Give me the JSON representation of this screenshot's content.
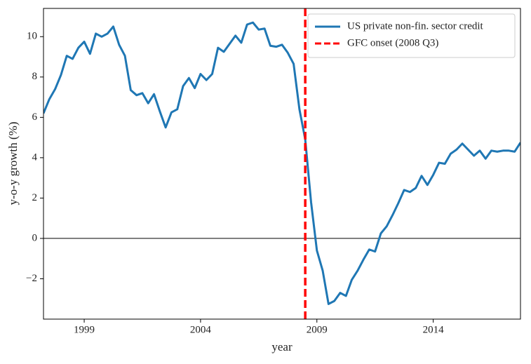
{
  "chart_data": {
    "type": "line",
    "xlabel": "year",
    "ylabel": "y-o-y growth (%)",
    "x": [
      1997.25,
      1997.5,
      1997.75,
      1998,
      1998.25,
      1998.5,
      1998.75,
      1999,
      1999.25,
      1999.5,
      1999.75,
      2000,
      2000.25,
      2000.5,
      2000.75,
      2001,
      2001.25,
      2001.5,
      2001.75,
      2002,
      2002.25,
      2002.5,
      2002.75,
      2003,
      2003.25,
      2003.5,
      2003.75,
      2004,
      2004.25,
      2004.5,
      2004.75,
      2005,
      2005.25,
      2005.5,
      2005.75,
      2006,
      2006.25,
      2006.5,
      2006.75,
      2007,
      2007.25,
      2007.5,
      2007.75,
      2008,
      2008.25,
      2008.5,
      2008.75,
      2009,
      2009.25,
      2009.5,
      2009.75,
      2010,
      2010.25,
      2010.5,
      2010.75,
      2011,
      2011.25,
      2011.5,
      2011.75,
      2012,
      2012.25,
      2012.5,
      2012.75,
      2013,
      2013.25,
      2013.5,
      2013.75,
      2014,
      2014.25,
      2014.5,
      2014.75,
      2015,
      2015.25,
      2015.5,
      2015.75,
      2016,
      2016.25,
      2016.5,
      2016.75,
      2017,
      2017.25,
      2017.5,
      2017.75
    ],
    "series": [
      {
        "name": "US private non-fin. sector credit",
        "color": "#1f77b4",
        "values": [
          6.2,
          6.9,
          7.4,
          8.1,
          9.05,
          8.9,
          9.45,
          9.75,
          9.15,
          10.15,
          10.0,
          10.15,
          10.5,
          9.6,
          9.05,
          7.35,
          7.1,
          7.2,
          6.7,
          7.15,
          6.3,
          5.5,
          6.25,
          6.4,
          7.55,
          7.95,
          7.45,
          8.15,
          7.85,
          8.15,
          9.45,
          9.25,
          9.65,
          10.05,
          9.7,
          10.6,
          10.7,
          10.35,
          10.4,
          9.55,
          9.5,
          9.6,
          9.2,
          8.65,
          6.4,
          4.9,
          1.8,
          -0.6,
          -1.6,
          -3.25,
          -3.1,
          -2.7,
          -2.85,
          -2.05,
          -1.6,
          -1.05,
          -0.55,
          -0.65,
          0.25,
          0.6,
          1.15,
          1.75,
          2.4,
          2.3,
          2.5,
          3.1,
          2.65,
          3.15,
          3.75,
          3.7,
          4.2,
          4.4,
          4.7,
          4.4,
          4.1,
          4.35,
          3.95,
          4.35,
          4.3,
          4.35,
          4.35,
          4.3,
          4.75
        ]
      }
    ],
    "vline": {
      "x": 2008.5,
      "name": "GFC onset (2008 Q3)",
      "color": "#ff0000"
    },
    "hline": 0,
    "xlim": [
      1997.25,
      2017.75
    ],
    "xticks": [
      1999,
      2004,
      2009,
      2014
    ],
    "ylim": [
      -4.0,
      11.4
    ],
    "yticks": [
      {
        "value": -2,
        "label": "−2"
      },
      0,
      2,
      4,
      6,
      8,
      10
    ],
    "legend": "upper right"
  }
}
